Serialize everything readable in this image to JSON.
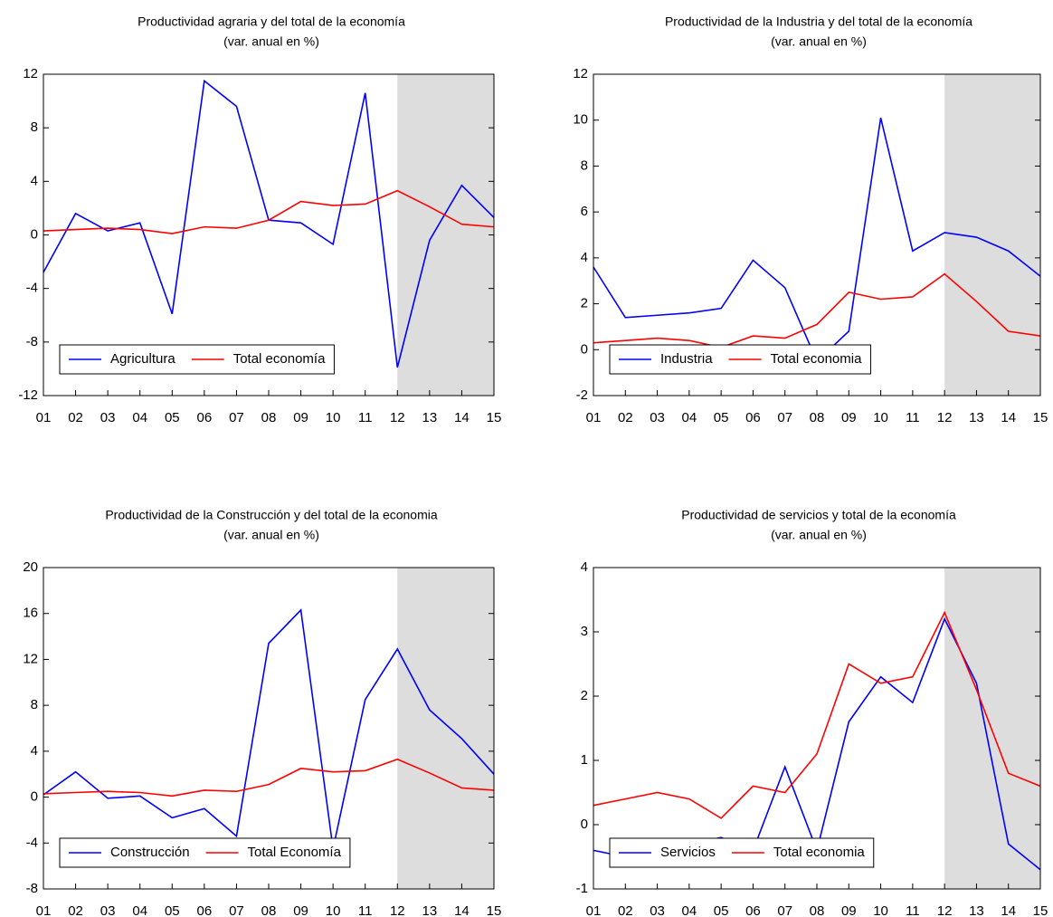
{
  "chart_data": [
    {
      "type": "line",
      "title": "Productividad agraria y del total de la economía",
      "subtitle": "(var. anual en %)",
      "categories": [
        "01",
        "02",
        "03",
        "04",
        "05",
        "06",
        "07",
        "08",
        "09",
        "10",
        "11",
        "12",
        "13",
        "14",
        "15"
      ],
      "series": [
        {
          "name": "Agricultura",
          "color": "#0000ff",
          "values": [
            -2.8,
            1.6,
            0.3,
            0.9,
            -5.9,
            11.5,
            9.6,
            1.1,
            0.9,
            -0.7,
            10.6,
            -9.9,
            -0.4,
            3.7,
            1.3
          ]
        },
        {
          "name": "Total economía",
          "color": "#ff0000",
          "values": [
            0.3,
            0.4,
            0.5,
            0.4,
            0.1,
            0.6,
            0.5,
            1.1,
            2.5,
            2.2,
            2.3,
            3.3,
            2.1,
            0.8,
            0.6
          ]
        }
      ],
      "ylim": [
        -12,
        12
      ],
      "yticks": [
        -12,
        -8,
        -4,
        0,
        4,
        8,
        12
      ],
      "legend": "lower left",
      "shaded_range": [
        "12",
        "15"
      ],
      "shade_color": "#dddddd"
    },
    {
      "type": "line",
      "title": "Productividad de la Industria y del total de la economía",
      "subtitle": "(var. anual en %)",
      "categories": [
        "01",
        "02",
        "03",
        "04",
        "05",
        "06",
        "07",
        "08",
        "09",
        "10",
        "11",
        "12",
        "13",
        "14",
        "15"
      ],
      "series": [
        {
          "name": "Industria",
          "color": "#0000ff",
          "values": [
            3.6,
            1.4,
            1.5,
            1.6,
            1.8,
            3.9,
            2.7,
            -0.5,
            0.8,
            10.1,
            4.3,
            5.1,
            4.9,
            4.3,
            3.2
          ]
        },
        {
          "name": "Total economia",
          "color": "#ff0000",
          "values": [
            0.3,
            0.4,
            0.5,
            0.4,
            0.1,
            0.6,
            0.5,
            1.1,
            2.5,
            2.2,
            2.3,
            3.3,
            2.1,
            0.8,
            0.6
          ]
        }
      ],
      "ylim": [
        -2,
        12
      ],
      "yticks": [
        -2,
        0,
        2,
        4,
        6,
        8,
        10,
        12
      ],
      "legend": "lower left",
      "shaded_range": [
        "12",
        "15"
      ],
      "shade_color": "#dddddd"
    },
    {
      "type": "line",
      "title": "Productividad de la Construcción y del total de la economia",
      "subtitle": "(var. anual en %)",
      "categories": [
        "01",
        "02",
        "03",
        "04",
        "05",
        "06",
        "07",
        "08",
        "09",
        "10",
        "11",
        "12",
        "13",
        "14",
        "15"
      ],
      "series": [
        {
          "name": "Construcción",
          "color": "#0000ff",
          "values": [
            0.2,
            2.2,
            -0.1,
            0.1,
            -1.8,
            -1.0,
            -3.4,
            13.4,
            16.3,
            -4.5,
            8.5,
            12.9,
            7.6,
            5.1,
            2.0
          ]
        },
        {
          "name": "Total Economía",
          "color": "#ff0000",
          "values": [
            0.3,
            0.4,
            0.5,
            0.4,
            0.1,
            0.6,
            0.5,
            1.1,
            2.5,
            2.2,
            2.3,
            3.3,
            2.1,
            0.8,
            0.6
          ]
        }
      ],
      "ylim": [
        -8,
        20
      ],
      "yticks": [
        -8,
        -4,
        0,
        4,
        8,
        12,
        16,
        20
      ],
      "legend": "lower left",
      "shaded_range": [
        "12",
        "15"
      ],
      "shade_color": "#dddddd"
    },
    {
      "type": "line",
      "title": "Productividad de servicios y total de la economía",
      "subtitle": "(var. anual en %)",
      "categories": [
        "01",
        "02",
        "03",
        "04",
        "05",
        "06",
        "07",
        "08",
        "09",
        "10",
        "11",
        "12",
        "13",
        "14",
        "15"
      ],
      "series": [
        {
          "name": "Servicios",
          "color": "#0000ff",
          "values": [
            -0.4,
            -0.5,
            -0.3,
            -0.3,
            -0.2,
            -0.4,
            0.9,
            -0.4,
            1.6,
            2.3,
            1.9,
            3.2,
            2.2,
            -0.3,
            -0.7
          ]
        },
        {
          "name": "Total economia",
          "color": "#ff0000",
          "values": [
            0.3,
            0.4,
            0.5,
            0.4,
            0.1,
            0.6,
            0.5,
            1.1,
            2.5,
            2.2,
            2.3,
            3.3,
            2.1,
            0.8,
            0.6
          ]
        }
      ],
      "ylim": [
        -1,
        4
      ],
      "yticks": [
        -1,
        0,
        1,
        2,
        3,
        4
      ],
      "legend": "lower left",
      "shaded_range": [
        "12",
        "15"
      ],
      "shade_color": "#dddddd"
    }
  ]
}
